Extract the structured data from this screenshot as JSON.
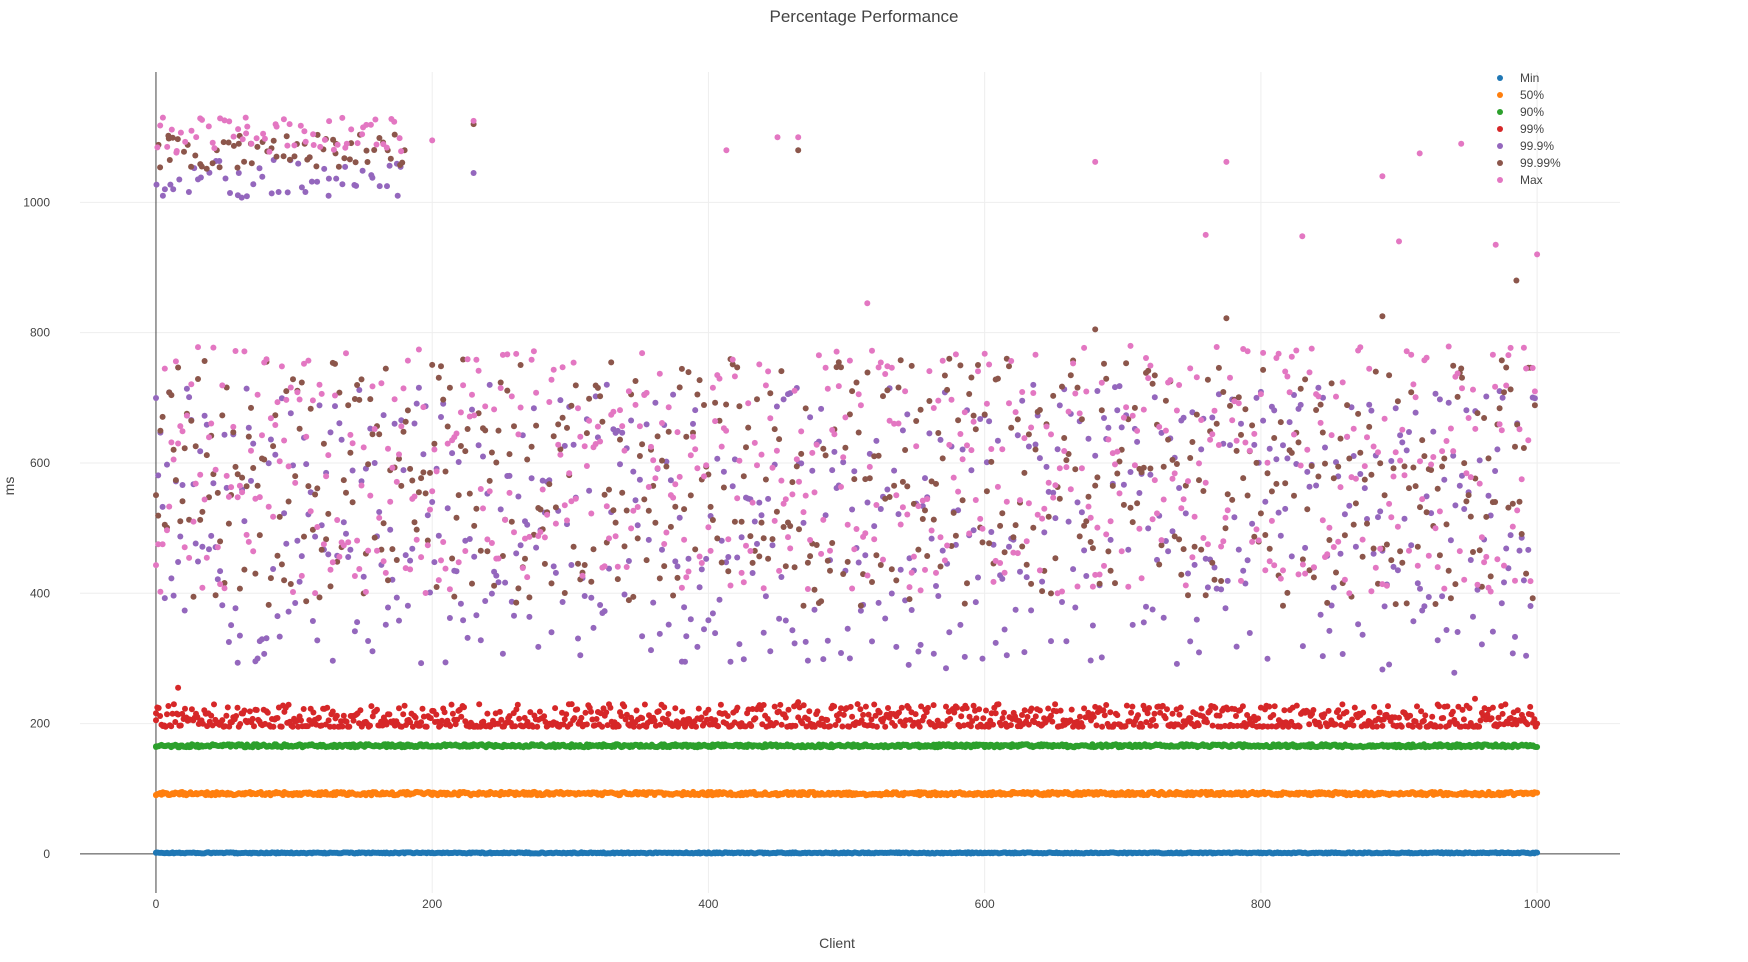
{
  "chart_data": {
    "type": "scatter",
    "title": "Percentage Performance",
    "xlabel": "Client",
    "ylabel": "ms",
    "xlim": [
      -55,
      1060
    ],
    "ylim": [
      -60,
      1200
    ],
    "x_ticks": [
      0,
      200,
      400,
      600,
      800,
      1000
    ],
    "y_ticks": [
      0,
      200,
      400,
      600,
      800,
      1000
    ],
    "grid": true,
    "legend_position": "top-right",
    "n_clients": 1000,
    "series": [
      {
        "name": "Min",
        "color": "#1f77b4",
        "typical_range": [
          0,
          3
        ],
        "points": [
          [
            0,
            2
          ],
          [
            200,
            2
          ],
          [
            400,
            2
          ],
          [
            600,
            2
          ],
          [
            800,
            2
          ],
          [
            1000,
            2
          ]
        ]
      },
      {
        "name": "50%",
        "color": "#ff7f0e",
        "typical_range": [
          88,
          97
        ],
        "points": [
          [
            0,
            90
          ],
          [
            200,
            94
          ],
          [
            400,
            95
          ],
          [
            600,
            93
          ],
          [
            800,
            94
          ],
          [
            1000,
            94
          ]
        ]
      },
      {
        "name": "90%",
        "color": "#2ca02c",
        "typical_range": [
          162,
          170
        ],
        "points": [
          [
            0,
            164
          ],
          [
            200,
            166
          ],
          [
            400,
            166
          ],
          [
            600,
            165
          ],
          [
            800,
            166
          ],
          [
            1000,
            164
          ]
        ]
      },
      {
        "name": "99%",
        "color": "#d62728",
        "typical_range": [
          195,
          230
        ],
        "points": [
          [
            16,
            255
          ],
          [
            465,
            233
          ],
          [
            955,
            238
          ],
          [
            0,
            205
          ],
          [
            1000,
            200
          ]
        ]
      },
      {
        "name": "99.9%",
        "color": "#9467bd",
        "typical_range": [
          290,
          720
        ],
        "points": [
          [
            5,
            1010
          ],
          [
            60,
            1045
          ],
          [
            125,
            1010
          ],
          [
            175,
            1010
          ],
          [
            230,
            1045
          ],
          [
            383,
            295
          ],
          [
            545,
            290
          ],
          [
            572,
            285
          ],
          [
            888,
            283
          ],
          [
            940,
            278
          ],
          [
            845,
            700
          ],
          [
            975,
            700
          ]
        ]
      },
      {
        "name": "99.99%",
        "color": "#8c564b",
        "typical_range": [
          380,
          760
        ],
        "points": [
          [
            10,
            1065
          ],
          [
            60,
            1090
          ],
          [
            130,
            1075
          ],
          [
            180,
            1080
          ],
          [
            230,
            1120
          ],
          [
            465,
            1080
          ],
          [
            680,
            805
          ],
          [
            775,
            822
          ],
          [
            888,
            825
          ],
          [
            985,
            880
          ],
          [
            945,
            745
          ]
        ]
      },
      {
        "name": "Max",
        "color": "#e377c2",
        "typical_range": [
          400,
          780
        ],
        "points": [
          [
            5,
            1130
          ],
          [
            65,
            1130
          ],
          [
            150,
            1115
          ],
          [
            200,
            1095
          ],
          [
            230,
            1125
          ],
          [
            413,
            1080
          ],
          [
            450,
            1100
          ],
          [
            465,
            1100
          ],
          [
            680,
            1062
          ],
          [
            775,
            1062
          ],
          [
            888,
            1040
          ],
          [
            915,
            1075
          ],
          [
            945,
            1090
          ],
          [
            760,
            950
          ],
          [
            830,
            948
          ],
          [
            900,
            940
          ],
          [
            970,
            935
          ],
          [
            1000,
            920
          ],
          [
            515,
            845
          ]
        ]
      }
    ]
  }
}
